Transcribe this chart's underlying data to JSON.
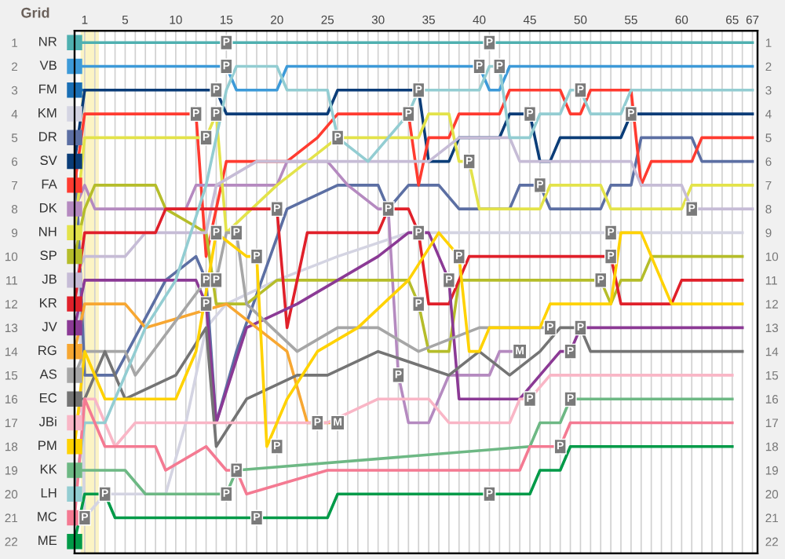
{
  "chart_data": {
    "type": "line",
    "xlim": [
      0,
      67.5
    ],
    "ylim": [
      22.5,
      0.5
    ],
    "y2lim": [
      22.5,
      0.5
    ],
    "xticks": [
      {
        "value": 1,
        "label": "1"
      },
      {
        "value": 2,
        "label": null
      },
      {
        "value": 3,
        "label": null
      },
      {
        "value": 4,
        "label": null
      },
      {
        "value": 5,
        "label": "5"
      },
      {
        "value": 6,
        "label": null
      },
      {
        "value": 7,
        "label": null
      },
      {
        "value": 8,
        "label": null
      },
      {
        "value": 9,
        "label": null
      },
      {
        "value": 10,
        "label": "10"
      },
      {
        "value": 11,
        "label": null
      },
      {
        "value": 12,
        "label": null
      },
      {
        "value": 13,
        "label": null
      },
      {
        "value": 14,
        "label": null
      },
      {
        "value": 15,
        "label": "15"
      },
      {
        "value": 16,
        "label": null
      },
      {
        "value": 17,
        "label": null
      },
      {
        "value": 18,
        "label": null
      },
      {
        "value": 19,
        "label": null
      },
      {
        "value": 20,
        "label": "20"
      },
      {
        "value": 21,
        "label": null
      },
      {
        "value": 22,
        "label": null
      },
      {
        "value": 23,
        "label": null
      },
      {
        "value": 24,
        "label": null
      },
      {
        "value": 25,
        "label": "25"
      },
      {
        "value": 26,
        "label": null
      },
      {
        "value": 27,
        "label": null
      },
      {
        "value": 28,
        "label": null
      },
      {
        "value": 29,
        "label": null
      },
      {
        "value": 30,
        "label": "30"
      },
      {
        "value": 31,
        "label": null
      },
      {
        "value": 32,
        "label": null
      },
      {
        "value": 33,
        "label": null
      },
      {
        "value": 34,
        "label": null
      },
      {
        "value": 35,
        "label": "35"
      },
      {
        "value": 36,
        "label": null
      },
      {
        "value": 37,
        "label": null
      },
      {
        "value": 38,
        "label": null
      },
      {
        "value": 39,
        "label": null
      },
      {
        "value": 40,
        "label": "40"
      },
      {
        "value": 41,
        "label": null
      },
      {
        "value": 42,
        "label": null
      },
      {
        "value": 43,
        "label": null
      },
      {
        "value": 44,
        "label": null
      },
      {
        "value": 45,
        "label": "45"
      },
      {
        "value": 46,
        "label": null
      },
      {
        "value": 47,
        "label": null
      },
      {
        "value": 48,
        "label": null
      },
      {
        "value": 49,
        "label": null
      },
      {
        "value": 50,
        "label": "50"
      },
      {
        "value": 51,
        "label": null
      },
      {
        "value": 52,
        "label": null
      },
      {
        "value": 53,
        "label": null
      },
      {
        "value": 54,
        "label": null
      },
      {
        "value": 55,
        "label": "55"
      },
      {
        "value": 56,
        "label": null
      },
      {
        "value": 57,
        "label": null
      },
      {
        "value": 58,
        "label": null
      },
      {
        "value": 59,
        "label": null
      },
      {
        "value": 60,
        "label": "60"
      },
      {
        "value": 61,
        "label": null
      },
      {
        "value": 62,
        "label": null
      },
      {
        "value": 63,
        "label": null
      },
      {
        "value": 64,
        "label": null
      },
      {
        "value": 65,
        "label": "65"
      },
      {
        "value": 66,
        "label": null
      },
      {
        "value": 67,
        "label": "67"
      }
    ],
    "yticks": [
      1,
      2,
      3,
      4,
      5,
      6,
      7,
      8,
      9,
      10,
      11,
      12,
      13,
      14,
      15,
      16,
      17,
      18,
      19,
      20,
      21,
      22
    ],
    "y2ticks": [
      1,
      2,
      3,
      4,
      5,
      6,
      7,
      8,
      9,
      10,
      11,
      12,
      13,
      14,
      15,
      16,
      17,
      18,
      19,
      20,
      21,
      22
    ],
    "grid": "x",
    "legend": false,
    "line_style": "solid",
    "bands": [
      {
        "axis": "x",
        "from": 0.6,
        "to": 2.4,
        "color": "#fcf4c4"
      }
    ],
    "series": [
      {
        "name": "NR",
        "color": "#4fb0b0",
        "x": [
          0,
          67
        ],
        "values": [
          1,
          1
        ]
      },
      {
        "name": "VB",
        "color": "#3d9ad8",
        "x": [
          0,
          15,
          16,
          20,
          21,
          40,
          41,
          42,
          43,
          67
        ],
        "values": [
          2,
          2,
          3,
          3,
          2,
          2,
          3,
          3,
          2,
          2
        ]
      },
      {
        "name": "FM",
        "color": "#1a6fb5",
        "x": [
          0,
          1
        ],
        "values": [
          3,
          3
        ]
      },
      {
        "name": "KM",
        "color": "#d4d4e2",
        "x": [
          0,
          1,
          3,
          9,
          11,
          13,
          15,
          20,
          26,
          33,
          66
        ],
        "values": [
          4,
          21,
          20,
          20,
          17,
          13,
          12,
          11,
          10,
          9,
          9
        ]
      },
      {
        "name": "DR",
        "color": "#5c6fa3",
        "x": [
          0,
          1,
          4,
          9,
          12,
          13,
          14,
          16,
          21,
          26,
          30,
          31,
          33,
          36,
          38,
          43,
          44,
          46,
          47,
          52,
          53,
          55,
          56,
          61,
          62,
          67
        ],
        "values": [
          5,
          15,
          15,
          11,
          10,
          11,
          17,
          14,
          8,
          7,
          7,
          8,
          7,
          7,
          8,
          8,
          7,
          7,
          8,
          8,
          7,
          7,
          5,
          5,
          6,
          6
        ]
      },
      {
        "name": "SV",
        "color": "#0b3d78",
        "x": [
          0,
          1,
          14,
          15,
          25,
          26,
          34,
          35,
          37,
          38,
          42,
          43,
          45,
          46,
          47,
          48,
          54,
          55,
          67
        ],
        "values": [
          6,
          3,
          3,
          4,
          4,
          3,
          3,
          6,
          6,
          5,
          5,
          4,
          4,
          6,
          6,
          5,
          5,
          4,
          4
        ]
      },
      {
        "name": "FA",
        "color": "#ff3b30",
        "x": [
          0,
          1,
          12,
          13,
          15,
          21,
          24,
          26,
          33,
          34,
          35,
          37,
          38,
          42,
          43,
          48,
          49,
          50,
          51,
          55,
          56,
          57,
          61,
          62,
          67
        ],
        "values": [
          7,
          4,
          4,
          10,
          6,
          6,
          5,
          4,
          4,
          7,
          5,
          5,
          4,
          4,
          3,
          3,
          4,
          4,
          3,
          3,
          7,
          6,
          6,
          5,
          5
        ]
      },
      {
        "name": "DK",
        "color": "#b58ac0",
        "x": [
          0,
          1,
          2,
          11,
          12,
          20,
          21,
          25,
          27,
          30,
          31,
          32,
          33,
          35,
          37,
          41,
          42,
          44
        ],
        "values": [
          8,
          7,
          8,
          8,
          7,
          7,
          6,
          6,
          7,
          8,
          8,
          15,
          17,
          17,
          15,
          15,
          14,
          14
        ]
      },
      {
        "name": "NH",
        "color": "#e3e34a",
        "x": [
          0,
          1,
          13,
          14,
          15,
          20,
          23,
          26,
          34,
          35,
          37,
          38,
          39,
          40,
          46,
          47,
          52,
          53,
          60,
          61,
          67
        ],
        "values": [
          9,
          5,
          5,
          4,
          9,
          7,
          6,
          5,
          5,
          4,
          4,
          6,
          6,
          8,
          8,
          7,
          7,
          8,
          8,
          7,
          7
        ]
      },
      {
        "name": "SP",
        "color": "#b5bd2a",
        "x": [
          0,
          1,
          2,
          8,
          9,
          13,
          14,
          17,
          20,
          33,
          34,
          35,
          37,
          38,
          52,
          53,
          54,
          56,
          57,
          66
        ],
        "values": [
          10,
          8,
          7,
          7,
          8,
          9,
          12,
          12,
          11,
          11,
          12,
          14,
          14,
          11,
          11,
          12,
          11,
          11,
          10,
          10
        ]
      },
      {
        "name": "JB",
        "color": "#c6bcd6",
        "x": [
          0,
          1,
          5,
          7,
          13,
          14,
          18,
          35,
          38,
          43,
          44,
          47,
          55,
          56,
          60,
          61,
          67
        ],
        "values": [
          11,
          10,
          10,
          9,
          9,
          7,
          6,
          6,
          5,
          5,
          6,
          6,
          6,
          7,
          7,
          8,
          8
        ]
      },
      {
        "name": "KR",
        "color": "#e0202a",
        "x": [
          0,
          1,
          8,
          9,
          20,
          21,
          23,
          30,
          31,
          33,
          34,
          35,
          37,
          39,
          53,
          54,
          59,
          60,
          66
        ],
        "values": [
          12,
          9,
          9,
          8,
          8,
          13,
          9,
          9,
          8,
          8,
          9,
          12,
          12,
          10,
          10,
          12,
          12,
          11,
          11
        ]
      },
      {
        "name": "JV",
        "color": "#8b3a95",
        "x": [
          0,
          1,
          12,
          13,
          14,
          17,
          22,
          30,
          33,
          35,
          36,
          37,
          38,
          44,
          46,
          48,
          49,
          50,
          66
        ],
        "values": [
          13,
          11,
          11,
          12,
          17,
          13,
          12,
          10,
          9,
          9,
          10,
          11,
          16,
          16,
          15,
          14,
          14,
          13,
          13
        ]
      },
      {
        "name": "RG",
        "color": "#f7a732",
        "x": [
          0,
          1,
          5,
          7,
          15,
          18,
          21,
          23,
          24,
          26
        ],
        "values": [
          14,
          12,
          12,
          13,
          12,
          13,
          14,
          17,
          17,
          17
        ]
      },
      {
        "name": "AS",
        "color": "#a6a6a6",
        "x": [
          0,
          1,
          5,
          6,
          13,
          14,
          15,
          16,
          17,
          22,
          26,
          30,
          34,
          40,
          46,
          47
        ],
        "values": [
          15,
          14,
          14,
          15,
          11,
          11,
          9,
          9,
          12,
          14,
          13,
          13,
          14,
          13,
          13,
          13
        ]
      },
      {
        "name": "EC",
        "color": "#747474",
        "x": [
          0,
          1,
          3,
          5,
          10,
          13,
          14,
          17,
          22,
          25,
          30,
          37,
          40,
          43,
          46,
          48,
          50,
          51,
          66
        ],
        "values": [
          16,
          16,
          14,
          16,
          15,
          13,
          18,
          16,
          15,
          15,
          14,
          15,
          14,
          15,
          14,
          13,
          13,
          14,
          14
        ]
      },
      {
        "name": "JBi",
        "color": "#f9b6c6",
        "x": [
          0,
          1,
          2,
          4,
          6,
          20,
          25,
          30,
          35,
          37,
          43,
          44,
          45,
          47,
          65
        ],
        "values": [
          17,
          16,
          16,
          18,
          17,
          17,
          17,
          16,
          16,
          17,
          17,
          16,
          16,
          15,
          15
        ]
      },
      {
        "name": "PM",
        "color": "#ffd200",
        "x": [
          0,
          1,
          3,
          10,
          12,
          14,
          17,
          18,
          19,
          21,
          24,
          28,
          33,
          36,
          38,
          39,
          40,
          41,
          46,
          47,
          53,
          54,
          56,
          57,
          58,
          59,
          66
        ],
        "values": [
          18,
          14,
          16,
          16,
          14,
          9,
          10,
          10,
          18,
          16,
          14,
          13,
          11,
          9,
          10,
          14,
          14,
          13,
          13,
          12,
          12,
          9,
          9,
          10,
          11,
          12,
          12
        ]
      },
      {
        "name": "KK",
        "color": "#6db884",
        "x": [
          0,
          1,
          5,
          7,
          15,
          16,
          45,
          46,
          48,
          49,
          65
        ],
        "values": [
          19,
          19,
          19,
          20,
          20,
          19,
          18,
          17,
          17,
          16,
          16
        ]
      },
      {
        "name": "LH",
        "color": "#93cdd2",
        "x": [
          0,
          1,
          3,
          7,
          10,
          13,
          15,
          16,
          20,
          21,
          25,
          26,
          29,
          31,
          33,
          34,
          40,
          41,
          42,
          43,
          45,
          46,
          48,
          49,
          50,
          51,
          54,
          55,
          67
        ],
        "values": [
          20,
          17,
          17,
          13,
          11,
          7,
          3,
          2,
          2,
          3,
          3,
          5,
          6,
          5,
          4,
          3,
          3,
          2,
          2,
          5,
          5,
          4,
          4,
          3,
          3,
          4,
          4,
          3,
          3
        ]
      },
      {
        "name": "MC",
        "color": "#f47a92",
        "x": [
          0,
          1,
          3,
          8,
          9,
          13,
          15,
          16,
          17,
          25,
          44,
          45,
          48,
          49,
          65
        ],
        "values": [
          21,
          16,
          18,
          18,
          19,
          18,
          19,
          19,
          20,
          19,
          19,
          18,
          18,
          17,
          17
        ]
      },
      {
        "name": "ME",
        "color": "#009a48",
        "x": [
          0,
          1,
          3,
          4,
          25,
          26,
          41,
          45,
          46,
          48,
          49,
          65
        ],
        "values": [
          22,
          20,
          20,
          21,
          21,
          20,
          20,
          20,
          19,
          19,
          18,
          18
        ]
      }
    ],
    "annotations": [
      "Grid",
      {
        "text": "P",
        "x": 15,
        "y": 1
      },
      {
        "text": "P",
        "x": 41,
        "y": 1
      },
      {
        "text": "P",
        "x": 15,
        "y": 2
      },
      {
        "text": "P",
        "x": 40,
        "y": 2
      },
      {
        "text": "P",
        "x": 42,
        "y": 2
      },
      {
        "text": "P",
        "x": 14,
        "y": 3
      },
      {
        "text": "P",
        "x": 34,
        "y": 3
      },
      {
        "text": "P",
        "x": 50,
        "y": 3
      },
      {
        "text": "P",
        "x": 12,
        "y": 4
      },
      {
        "text": "P",
        "x": 14,
        "y": 4
      },
      {
        "text": "P",
        "x": 33,
        "y": 4
      },
      {
        "text": "P",
        "x": 45,
        "y": 4
      },
      {
        "text": "P",
        "x": 55,
        "y": 4
      },
      {
        "text": "P",
        "x": 13,
        "y": 5
      },
      {
        "text": "P",
        "x": 26,
        "y": 5
      },
      {
        "text": "P",
        "x": 39,
        "y": 6
      },
      {
        "text": "P",
        "x": 46,
        "y": 7
      },
      {
        "text": "P",
        "x": 20,
        "y": 8
      },
      {
        "text": "P",
        "x": 31,
        "y": 8
      },
      {
        "text": "P",
        "x": 61,
        "y": 8
      },
      {
        "text": "P",
        "x": 14,
        "y": 9
      },
      {
        "text": "P",
        "x": 16,
        "y": 9
      },
      {
        "text": "P",
        "x": 34,
        "y": 9
      },
      {
        "text": "P",
        "x": 53,
        "y": 9
      },
      {
        "text": "P",
        "x": 18,
        "y": 10
      },
      {
        "text": "P",
        "x": 38,
        "y": 10
      },
      {
        "text": "P",
        "x": 53,
        "y": 10
      },
      {
        "text": "P",
        "x": 13,
        "y": 11
      },
      {
        "text": "P",
        "x": 14,
        "y": 11
      },
      {
        "text": "P",
        "x": 37,
        "y": 11
      },
      {
        "text": "P",
        "x": 52,
        "y": 11
      },
      {
        "text": "P",
        "x": 13,
        "y": 12
      },
      {
        "text": "P",
        "x": 34,
        "y": 12
      },
      {
        "text": "P",
        "x": 47,
        "y": 13
      },
      {
        "text": "P",
        "x": 50,
        "y": 13
      },
      {
        "text": "M",
        "x": 44,
        "y": 14
      },
      {
        "text": "P",
        "x": 49,
        "y": 14
      },
      {
        "text": "P",
        "x": 32,
        "y": 15
      },
      {
        "text": "P",
        "x": 45,
        "y": 16
      },
      {
        "text": "P",
        "x": 49,
        "y": 16
      },
      {
        "text": "P",
        "x": 24,
        "y": 17
      },
      {
        "text": "M",
        "x": 26,
        "y": 17
      },
      {
        "text": "P",
        "x": 20,
        "y": 18
      },
      {
        "text": "P",
        "x": 48,
        "y": 18
      },
      {
        "text": "P",
        "x": 16,
        "y": 19
      },
      {
        "text": "P",
        "x": 3,
        "y": 20
      },
      {
        "text": "P",
        "x": 15,
        "y": 20
      },
      {
        "text": "P",
        "x": 41,
        "y": 20
      },
      {
        "text": "P",
        "x": 1,
        "y": 21
      },
      {
        "text": "P",
        "x": 18,
        "y": 21
      }
    ]
  }
}
